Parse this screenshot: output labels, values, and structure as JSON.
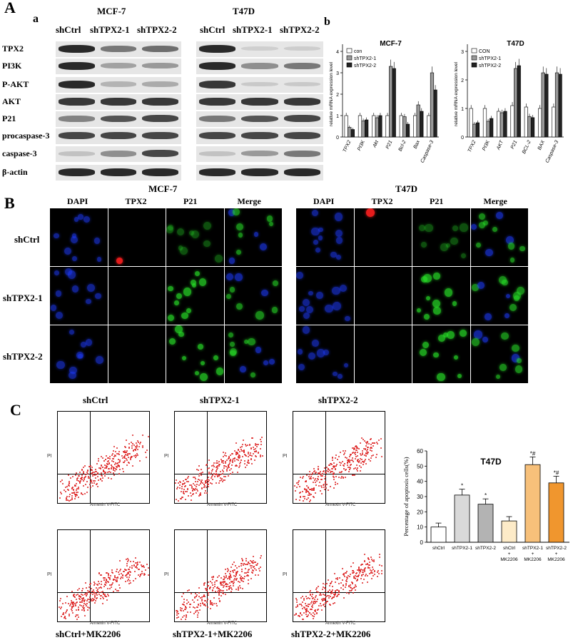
{
  "panels": {
    "A": "A",
    "a": "a",
    "b": "b",
    "B": "B",
    "C": "C"
  },
  "western": {
    "cell_lines": [
      "MCF-7",
      "T47D"
    ],
    "lanes": [
      "shCtrl",
      "shTPX2-1",
      "shTPX2-2"
    ],
    "rows": [
      "TPX2",
      "PI3K",
      "P-AKT",
      "AKT",
      "P21",
      "procaspase-3",
      "caspase-3",
      "β-actin"
    ]
  },
  "qpcr": {
    "charts": [
      {
        "title": "MCF-7",
        "ylabel": "relative mRNA expression level",
        "legend": [
          "con",
          "shTPX2-1",
          "shTPX2-2"
        ],
        "categories": [
          "TPX2",
          "PI3K",
          "Akt",
          "P21",
          "Bcl-2",
          "Bax",
          "Caspase-3"
        ],
        "yticks": [
          "0",
          "1",
          "2",
          "3",
          "4"
        ]
      },
      {
        "title": "T47D",
        "ylabel": "relative mRNA expression level",
        "legend": [
          "CON",
          "shTPX2-1",
          "shTPX2-2"
        ],
        "categories": [
          "TPX2",
          "PI3K",
          "AKT",
          "P21",
          "BCL-2",
          "BAX",
          "Caspase-3"
        ],
        "yticks": [
          "0",
          "1",
          "2",
          "3"
        ]
      }
    ]
  },
  "chart_data": [
    {
      "type": "bar",
      "title": "MCF-7",
      "ylabel": "relative mRNA expression level",
      "ylim": [
        0,
        4
      ],
      "categories": [
        "TPX2",
        "PI3K",
        "Akt",
        "P21",
        "Bcl-2",
        "Bax",
        "Caspase-3"
      ],
      "series": [
        {
          "name": "con",
          "values": [
            1.0,
            1.0,
            1.0,
            1.0,
            1.0,
            1.0,
            1.0
          ]
        },
        {
          "name": "shTPX2-1",
          "values": [
            0.45,
            0.75,
            0.9,
            3.3,
            0.95,
            1.5,
            3.0
          ]
        },
        {
          "name": "shTPX2-2",
          "values": [
            0.35,
            0.8,
            1.0,
            3.2,
            0.6,
            1.2,
            2.2
          ]
        }
      ]
    },
    {
      "type": "bar",
      "title": "T47D",
      "ylabel": "relative mRNA expression level",
      "ylim": [
        0,
        3
      ],
      "categories": [
        "TPX2",
        "PI3K",
        "AKT",
        "P21",
        "BCL-2",
        "BAX",
        "Caspase-3"
      ],
      "series": [
        {
          "name": "CON",
          "values": [
            1.0,
            1.0,
            0.9,
            1.1,
            1.05,
            1.0,
            1.05
          ]
        },
        {
          "name": "shTPX2-1",
          "values": [
            0.45,
            0.55,
            0.85,
            2.4,
            0.72,
            2.25,
            2.25
          ]
        },
        {
          "name": "shTPX2-2",
          "values": [
            0.5,
            0.65,
            0.9,
            2.5,
            0.68,
            2.2,
            2.2
          ]
        }
      ]
    },
    {
      "type": "bar",
      "title": "T47D",
      "ylabel": "Percentage of apoptosis cells(%)",
      "ylim": [
        0,
        60
      ],
      "yticks": [
        "0",
        "10",
        "20",
        "30",
        "40",
        "50",
        "60"
      ],
      "categories": [
        "shCtrl",
        "shTPX2-1",
        "shTPX2-2",
        "shCtrl + MK2206",
        "shTPX2-1 + MK2206",
        "shTPX2-2 + MK2206"
      ],
      "values": [
        10,
        31,
        25,
        14,
        51,
        39
      ],
      "annotations": [
        "",
        "*",
        "*",
        "",
        "*#",
        "*#"
      ],
      "colors": [
        "#ffffff",
        "#d9d9d9",
        "#b3b3b3",
        "#fdebc8",
        "#f7c07a",
        "#f0962e"
      ]
    }
  ],
  "if": {
    "cell_lines": [
      "MCF-7",
      "T47D"
    ],
    "channels": [
      "DAPI",
      "TPX2",
      "P21",
      "Merge"
    ],
    "rows": [
      "shCtrl",
      "shTPX2-1",
      "shTPX2-2"
    ]
  },
  "facs": {
    "top": [
      "shCtrl",
      "shTPX2-1",
      "shTPX2-2"
    ],
    "bottom": [
      "shCtrl+MK2206",
      "shTPX2-1+MK2206",
      "shTPX2-2+MK2206"
    ],
    "xlabel": "Annexin V-FITC",
    "ylabel": "PI"
  },
  "apoptosis_labels": {
    "c1": "shCtrl",
    "c2": "shTPX2-1",
    "c3": "shTPX2-2",
    "c4a": "shCtrl",
    "c4b": "+",
    "c4c": "MK2206",
    "c5a": "shTPX2-1",
    "c5b": "+",
    "c5c": "MK2206",
    "c6a": "shTPX2-2",
    "c6b": "+",
    "c6c": "MK2206"
  }
}
